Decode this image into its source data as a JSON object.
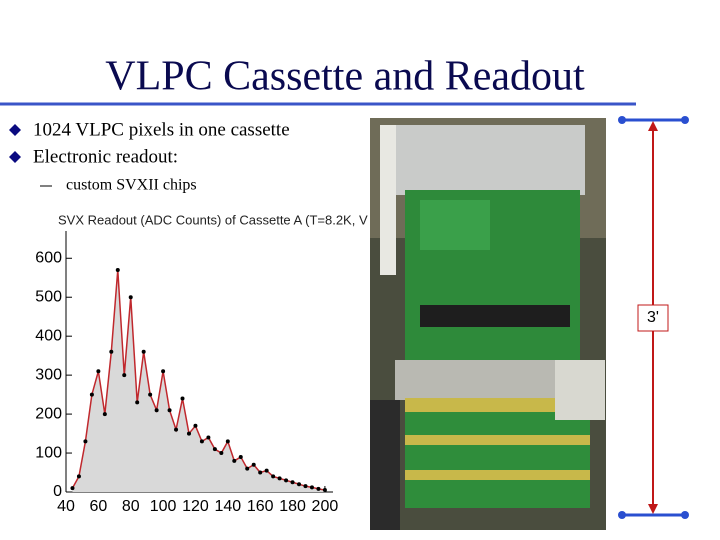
{
  "title": "VLPC Cassette and Readout",
  "bullets": [
    "1024 VLPC pixels in one cassette",
    "Electronic readout:"
  ],
  "sub_bullets": [
    "custom SVXII chips"
  ],
  "dimension_label": "3'",
  "chart_data": {
    "type": "line",
    "title": "SVX Readout (ADC Counts) of Cassette A (T=8.2K, V",
    "x": [
      44,
      48,
      52,
      56,
      60,
      64,
      68,
      72,
      76,
      80,
      84,
      88,
      92,
      96,
      100,
      104,
      108,
      112,
      116,
      120,
      124,
      128,
      132,
      136,
      140,
      144,
      148,
      152,
      156,
      160,
      164,
      168,
      172,
      176,
      180,
      184,
      188,
      192,
      196,
      200
    ],
    "values": [
      10,
      40,
      130,
      250,
      310,
      200,
      360,
      570,
      300,
      500,
      230,
      360,
      250,
      210,
      310,
      210,
      160,
      240,
      150,
      170,
      130,
      140,
      110,
      100,
      130,
      80,
      90,
      60,
      70,
      50,
      55,
      40,
      35,
      30,
      25,
      20,
      15,
      12,
      8,
      5
    ],
    "color": "#c0282d",
    "xlim": [
      40,
      205
    ],
    "ylim": [
      0,
      670
    ],
    "xticks": [
      40,
      60,
      80,
      100,
      120,
      140,
      160,
      180,
      200
    ],
    "yticks": [
      0,
      100,
      200,
      300,
      400,
      500,
      600
    ]
  }
}
